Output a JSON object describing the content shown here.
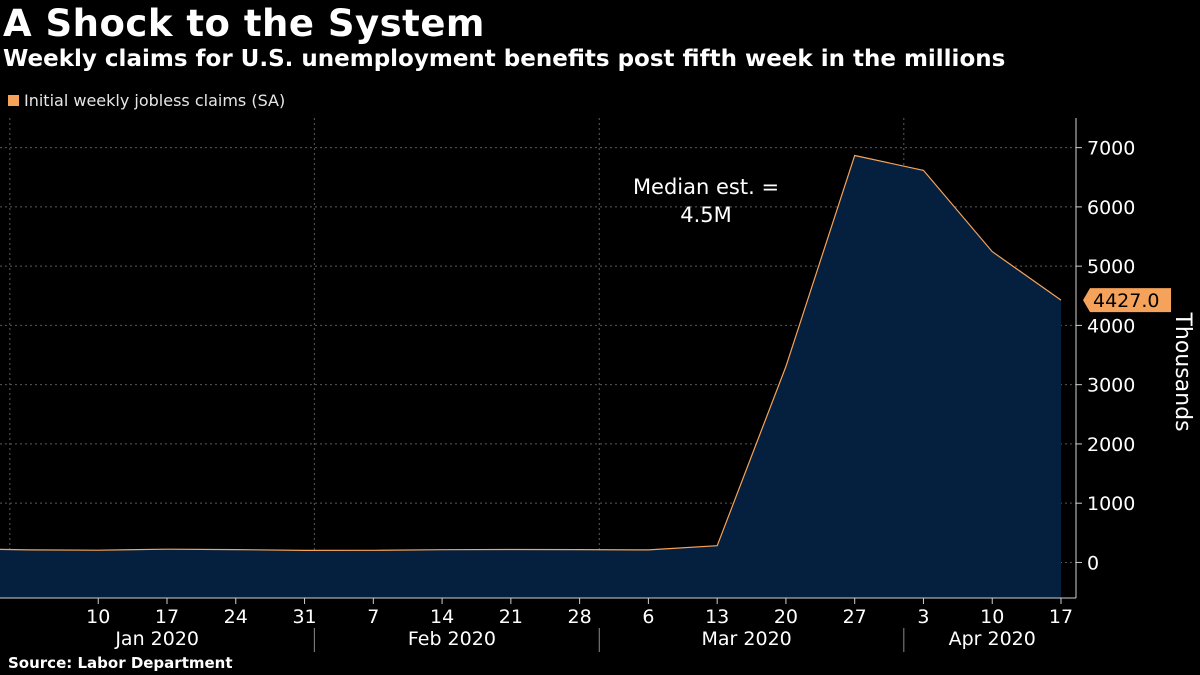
{
  "header": {
    "title": "A Shock to the System",
    "subtitle": "Weekly claims for U.S. unemployment benefits post fifth week in the millions",
    "legend_label": "Initial weekly jobless claims (SA)",
    "source": "Source:  Labor Department"
  },
  "colors": {
    "line": "#f5a35a",
    "fill": "#05203f",
    "grid": "#5a5a5a",
    "background": "#000000"
  },
  "chart_data": {
    "type": "area",
    "title": "A Shock to the System",
    "ylabel": "Thousands",
    "ylim": [
      -600,
      7500
    ],
    "yticks": [
      0,
      1000,
      2000,
      3000,
      4000,
      5000,
      6000,
      7000
    ],
    "x_range": [
      "2019-12-31",
      "2020-04-17"
    ],
    "x_tick_labels": [
      "10",
      "17",
      "24",
      "31",
      "7",
      "14",
      "21",
      "28",
      "6",
      "13",
      "20",
      "27",
      "3",
      "10",
      "17"
    ],
    "month_labels": [
      "Jan 2020",
      "Feb 2020",
      "Mar 2020",
      "Apr 2020"
    ],
    "series": [
      {
        "name": "Initial weekly jobless claims (SA)",
        "x": [
          "2019-12-31",
          "2020-01-03",
          "2020-01-10",
          "2020-01-17",
          "2020-01-24",
          "2020-01-31",
          "2020-02-07",
          "2020-02-14",
          "2020-02-21",
          "2020-02-28",
          "2020-03-06",
          "2020-03-13",
          "2020-03-20",
          "2020-03-27",
          "2020-04-03",
          "2020-04-10",
          "2020-04-17"
        ],
        "values": [
          220,
          212,
          207,
          223,
          216,
          203,
          205,
          215,
          219,
          217,
          211,
          282,
          3307,
          6867,
          6615,
          5245,
          4427
        ]
      }
    ],
    "last_value_label": "4427.0",
    "annotations": [
      {
        "text_lines": [
          "Median est. =",
          "4.5M"
        ]
      }
    ]
  }
}
